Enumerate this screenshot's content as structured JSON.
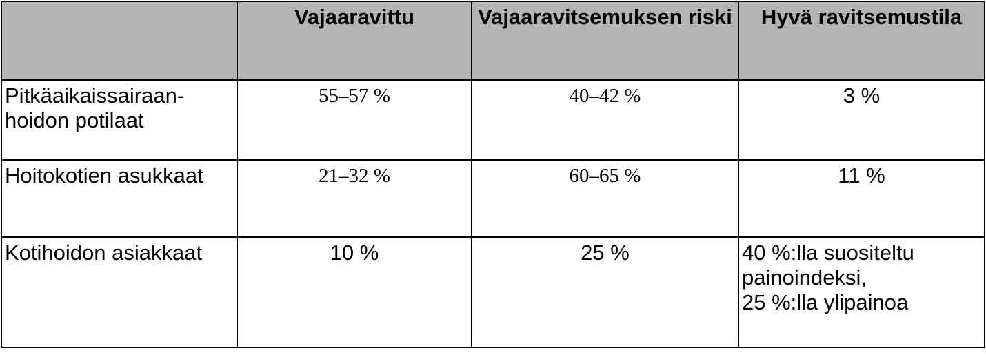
{
  "table": {
    "header": [
      "Vajaaravittu",
      "Vajaaravitsemuksen riski",
      "Hyvä ravitsemustila"
    ],
    "rows": [
      [
        "Pitkäaikaissairaan-\nhoidon potilaat",
        "55–57 %",
        "40–42 %",
        "3 %"
      ],
      [
        "Hoitokotien asukkaat",
        "21–32 %",
        "60–65 %",
        "11 %"
      ],
      [
        "Kotihoidon asiakkaat",
        "10 %",
        "25 %",
        "40 %:lla suositeltu\npainoindeksi,\n25 %:lla ylipainoa"
      ]
    ]
  }
}
